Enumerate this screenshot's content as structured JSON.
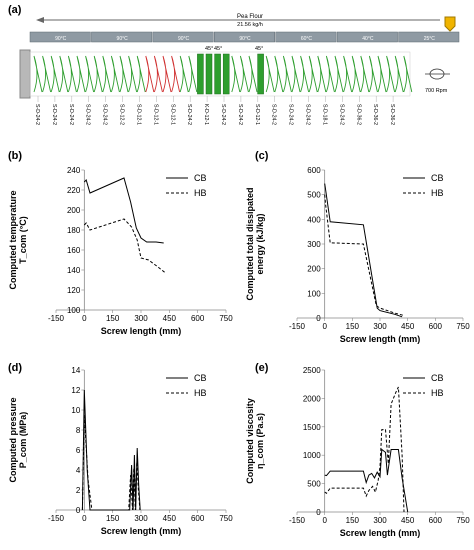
{
  "figure": {
    "panel_labels": [
      "(a)",
      "(b)",
      "(c)",
      "(d)",
      "(e)"
    ]
  },
  "screw_config": {
    "feed_label": "Pea Flour",
    "feed_rate": "21.56 kg/h",
    "speed_label": "700 Rpm",
    "barrel_temps": [
      "90°C",
      "90°C",
      "90°C",
      "90°C",
      "60°C",
      "40°C",
      "25°C"
    ],
    "kneading_angles": [
      "45°",
      "45°",
      "45°"
    ],
    "element_labels": [
      "S-D-24-2",
      "S-D-24-2",
      "S-D-24-2",
      "S-D-24-2",
      "S-D-24-2",
      "S-D-12-2",
      "S-D-12-1",
      "S-D-12-1",
      "S-D-12-1",
      "S-D-24-2",
      "K-D-12-1",
      "S-D-24-2",
      "S-D-24-2",
      "S-D-12-1",
      "S-D-24-2",
      "S-D-24-2",
      "S-D-24-2",
      "S-D-18-1",
      "S-D-24-2",
      "S-D-36-2",
      "S-D-36-2",
      "S-D-36-2"
    ]
  },
  "colors": {
    "screw_green": "#2e9e2e",
    "reverse_red": "#d03030",
    "barrel_grey": "#8f9aa3",
    "feed_yellow": "#f0b400"
  },
  "chart_data": [
    {
      "id": "b",
      "type": "line",
      "xlabel": "Screw length (mm)",
      "ylabel_lines": [
        "Computed temperature",
        "T_com (°C)"
      ],
      "xlim": [
        -150,
        750
      ],
      "ylim": [
        100,
        240
      ],
      "xticks": [
        -150,
        0,
        150,
        300,
        450,
        600,
        750
      ],
      "yticks": [
        100,
        120,
        140,
        160,
        180,
        200,
        220,
        240
      ],
      "legend_position": "top-right",
      "series": [
        {
          "name": "CB",
          "style": "solid",
          "x": [
            0,
            10,
            30,
            210,
            245,
            275,
            300,
            330,
            380,
            420
          ],
          "y": [
            228,
            230,
            217,
            232,
            208,
            182,
            172,
            168,
            168,
            167
          ]
        },
        {
          "name": "HB",
          "style": "dashed",
          "x": [
            0,
            10,
            30,
            210,
            250,
            280,
            300,
            340,
            390,
            430
          ],
          "y": [
            185,
            187,
            180,
            191,
            183,
            170,
            152,
            150,
            143,
            137
          ]
        }
      ]
    },
    {
      "id": "c",
      "type": "line",
      "xlabel": "Screw length (mm)",
      "ylabel_lines": [
        "Computed total dissipated",
        "energy (kJ/kg)"
      ],
      "xlim": [
        -150,
        750
      ],
      "ylim": [
        0,
        600
      ],
      "xticks": [
        -150,
        0,
        150,
        300,
        450,
        600,
        750
      ],
      "yticks": [
        0,
        100,
        200,
        300,
        400,
        500,
        600
      ],
      "legend_position": "top-right",
      "series": [
        {
          "name": "CB",
          "style": "solid",
          "x": [
            0,
            5,
            30,
            210,
            285,
            300,
            380,
            420
          ],
          "y": [
            545,
            520,
            390,
            378,
            40,
            30,
            15,
            5
          ]
        },
        {
          "name": "HB",
          "style": "dashed",
          "x": [
            0,
            5,
            30,
            210,
            280,
            300,
            380,
            430
          ],
          "y": [
            500,
            460,
            305,
            300,
            50,
            40,
            20,
            10
          ]
        }
      ]
    },
    {
      "id": "d",
      "type": "line",
      "xlabel": "Screw length (mm)",
      "ylabel_lines": [
        "Computed pressure",
        "P_com (MPa)"
      ],
      "xlim": [
        -150,
        750
      ],
      "ylim": [
        0,
        14
      ],
      "xticks": [
        -150,
        0,
        150,
        300,
        450,
        600,
        750
      ],
      "yticks": [
        0,
        2,
        4,
        6,
        8,
        10,
        12,
        14
      ],
      "legend_position": "top-right",
      "series": [
        {
          "name": "CB",
          "style": "solid",
          "x": [
            -10,
            0,
            15,
            30,
            240,
            250,
            258,
            265,
            272,
            280,
            288,
            296
          ],
          "y": [
            0,
            12,
            4,
            0,
            0,
            4.5,
            0,
            5.5,
            0,
            6.2,
            2.5,
            0
          ]
        },
        {
          "name": "HB",
          "style": "dashed",
          "x": [
            -10,
            0,
            20,
            40,
            235,
            245,
            255,
            262,
            270,
            278,
            286,
            294
          ],
          "y": [
            0,
            9.5,
            3,
            0,
            0,
            3.5,
            0,
            4.2,
            0,
            4.8,
            2,
            0
          ]
        }
      ]
    },
    {
      "id": "e",
      "type": "line",
      "xlabel": "Screw length (mm)",
      "ylabel_lines": [
        "Computed viscosity",
        "η_com (Pa.s)"
      ],
      "xlim": [
        -150,
        750
      ],
      "ylim": [
        0,
        2500
      ],
      "xticks": [
        -150,
        0,
        150,
        300,
        450,
        600,
        750
      ],
      "yticks": [
        0,
        500,
        1000,
        1500,
        2000,
        2500
      ],
      "legend_position": "top-right",
      "series": [
        {
          "name": "CB",
          "style": "solid",
          "x": [
            0,
            10,
            30,
            210,
            225,
            240,
            255,
            270,
            285,
            300,
            310,
            330,
            340,
            360,
            400,
            420,
            450
          ],
          "y": [
            650,
            640,
            720,
            720,
            520,
            650,
            680,
            600,
            700,
            620,
            1100,
            1050,
            650,
            1100,
            1100,
            600,
            0
          ]
        },
        {
          "name": "HB",
          "style": "dashed",
          "x": [
            0,
            10,
            30,
            210,
            225,
            240,
            260,
            275,
            290,
            300,
            310,
            330,
            345,
            360,
            385,
            400,
            420,
            430
          ],
          "y": [
            350,
            330,
            420,
            420,
            280,
            380,
            450,
            350,
            560,
            800,
            1450,
            1450,
            850,
            1900,
            2100,
            2200,
            1000,
            0
          ]
        }
      ]
    }
  ]
}
